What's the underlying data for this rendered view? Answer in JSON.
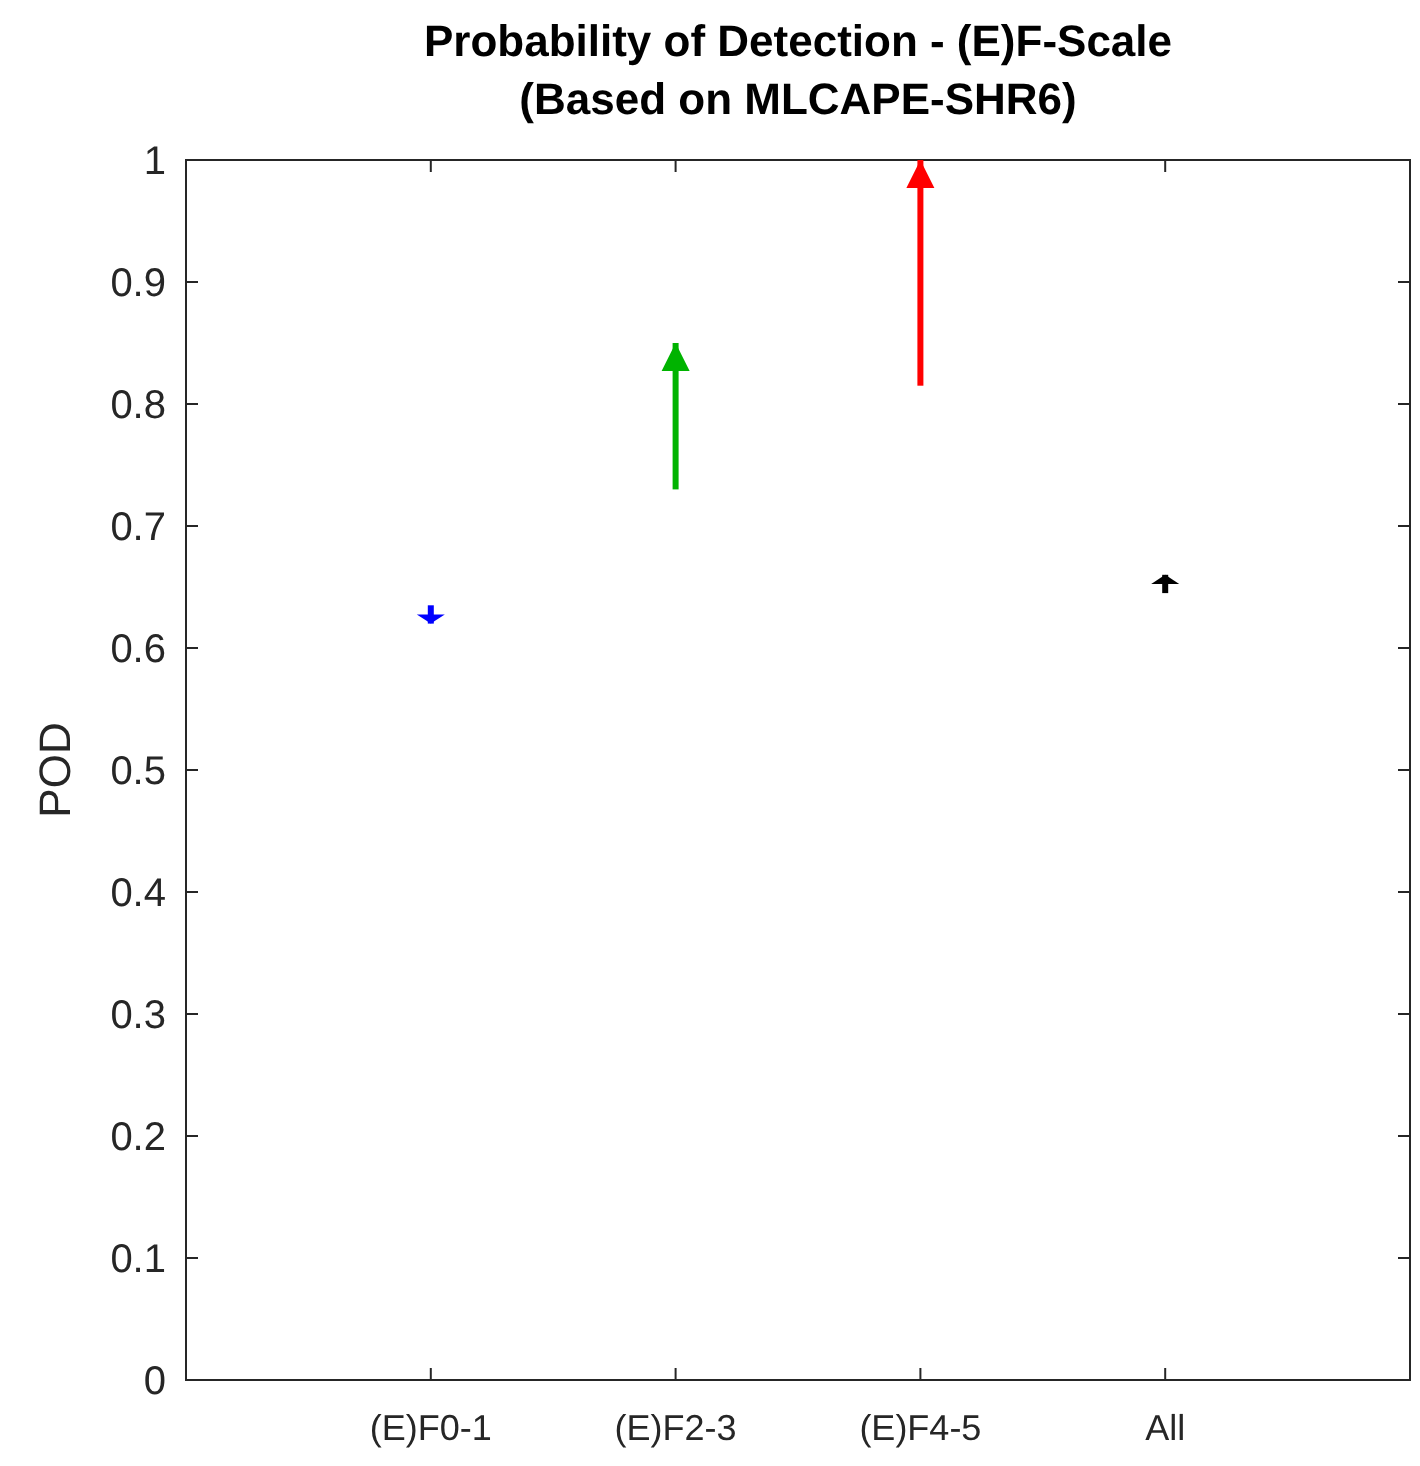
{
  "chart_data": {
    "type": "bar",
    "title": "Probability of Detection - (E)F-Scale\n(Based on MLCAPE-SHR6)",
    "ylabel": "POD",
    "categories": [
      "(E)F0-1",
      "(E)F2-3",
      "(E)F4-5",
      "All"
    ],
    "base": [
      0.635,
      0.73,
      0.815,
      0.645
    ],
    "values": [
      -0.015,
      0.12,
      0.185,
      0.015
    ],
    "colors": [
      "#0000ff",
      "#00b300",
      "#ff0000",
      "#000000"
    ],
    "ylim": [
      0,
      1
    ],
    "yticks": [
      0,
      0.1,
      0.2,
      0.3,
      0.4,
      0.5,
      0.6,
      0.7,
      0.8,
      0.9,
      1
    ],
    "grid": false
  }
}
